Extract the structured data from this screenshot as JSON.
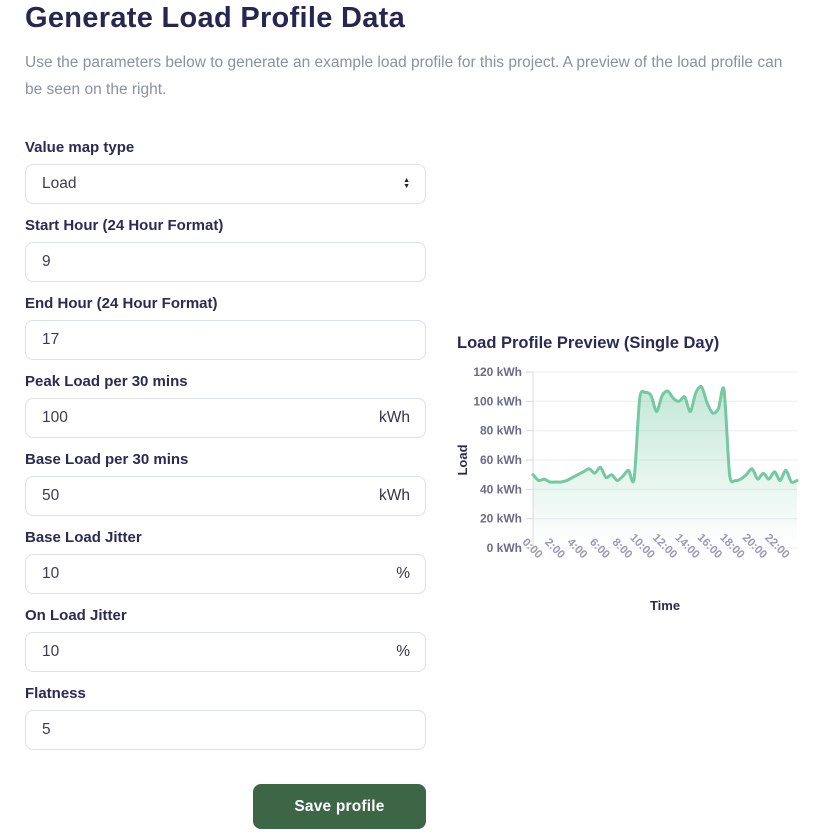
{
  "page": {
    "title": "Generate Load Profile Data",
    "description": "Use the parameters below to generate an example load profile for this project. A preview of the load profile can be seen on the right."
  },
  "form": {
    "fields": [
      {
        "label": "Value map type",
        "value": "Load",
        "type": "select"
      },
      {
        "label": "Start Hour (24 Hour Format)",
        "value": "9",
        "suffix": ""
      },
      {
        "label": "End Hour (24 Hour Format)",
        "value": "17",
        "suffix": ""
      },
      {
        "label": "Peak Load per 30 mins",
        "value": "100",
        "suffix": "kWh"
      },
      {
        "label": "Base Load per 30 mins",
        "value": "50",
        "suffix": "kWh"
      },
      {
        "label": "Base Load Jitter",
        "value": "10",
        "suffix": "%"
      },
      {
        "label": "On Load Jitter",
        "value": "10",
        "suffix": "%"
      },
      {
        "label": "Flatness",
        "value": "5",
        "suffix": ""
      }
    ],
    "save_label": "Save profile"
  },
  "chart_data": {
    "type": "area",
    "title": "Load Profile Preview (Single Day)",
    "xlabel": "Time",
    "ylabel": "Load",
    "y_unit": "kWh",
    "ylim": [
      0,
      120
    ],
    "ytick_step": 20,
    "grid": "horizontal-only",
    "legend": "none",
    "x_interval_minutes": 30,
    "x_labels": [
      "0:00",
      "2:00",
      "4:00",
      "6:00",
      "8:00",
      "10:00",
      "12:00",
      "14:00",
      "16:00",
      "18:00",
      "20:00",
      "22:00"
    ],
    "x_tick_every": 4,
    "values": [
      50,
      46,
      47,
      45,
      45,
      45,
      46,
      48,
      50,
      52,
      54,
      51,
      55,
      48,
      50,
      46,
      49,
      53,
      47,
      102,
      106,
      104,
      93,
      104,
      107,
      102,
      100,
      103,
      93,
      106,
      110,
      99,
      92,
      95,
      108,
      50,
      46,
      47,
      50,
      54,
      47,
      51,
      47,
      52,
      46,
      53,
      45,
      46
    ],
    "values_note": "approximate kWh per 30-min interval read from plot; base ~50 kWh with 10% jitter, peak ~100 kWh between 9:00 and 17:00",
    "line_color": "#74c8a2",
    "fill_style": "vertical gradient of line color fading to transparent"
  },
  "colors": {
    "heading_navy": "#272650",
    "label_navy": "#2b2a55",
    "description_gray": "#8b90a2",
    "input_border": "#dbdfe8",
    "button_green": "#3d6647",
    "line_green": "#74c8a2",
    "ytick_gray": "#6c6b8c",
    "xtick_lavender": "#9a99b8"
  }
}
